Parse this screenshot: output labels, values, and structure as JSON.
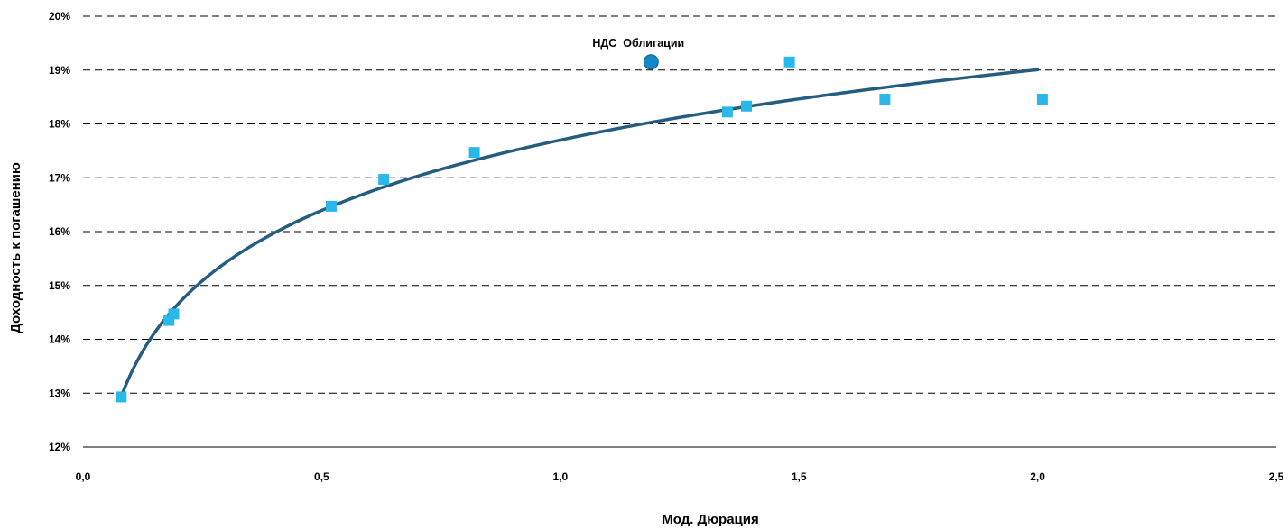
{
  "chart_data": {
    "type": "scatter",
    "xlabel": "Мод. Дюрация",
    "ylabel": "Доходность к погашению",
    "xlim": [
      0,
      2.5
    ],
    "ylim": [
      12,
      20
    ],
    "x_ticks": [
      "0,0",
      "0,5",
      "1,0",
      "1,5",
      "2,0",
      "2,5"
    ],
    "x_tick_values": [
      0,
      0.5,
      1.0,
      1.5,
      2.0,
      2.5
    ],
    "y_ticks": [
      "12%",
      "13%",
      "14%",
      "15%",
      "16%",
      "17%",
      "18%",
      "19%",
      "20%"
    ],
    "y_tick_values": [
      12,
      13,
      14,
      15,
      16,
      17,
      18,
      19,
      20
    ],
    "grid": "horizontal dashed",
    "series": [
      {
        "marker": "square",
        "color": "#29b8ea",
        "points": [
          {
            "x": 0.08,
            "y": 12.93
          },
          {
            "x": 0.18,
            "y": 14.35
          },
          {
            "x": 0.19,
            "y": 14.47
          },
          {
            "x": 0.52,
            "y": 16.47
          },
          {
            "x": 0.63,
            "y": 16.97
          },
          {
            "x": 0.82,
            "y": 17.47
          },
          {
            "x": 1.35,
            "y": 18.22
          },
          {
            "x": 1.39,
            "y": 18.33
          },
          {
            "x": 1.48,
            "y": 19.15
          },
          {
            "x": 1.68,
            "y": 18.46
          },
          {
            "x": 2.01,
            "y": 18.46
          }
        ]
      },
      {
        "name": "НДС Облигации",
        "marker": "circle",
        "color": "#1189c7",
        "points": [
          {
            "x": 1.19,
            "y": 19.15
          }
        ]
      }
    ],
    "trendline": {
      "type": "log",
      "color": "#245d7f",
      "x_range": [
        0.08,
        2.0
      ],
      "points": [
        {
          "x": 0.08,
          "y": 12.93
        },
        {
          "x": 0.19,
          "y": 14.55
        },
        {
          "x": 0.4,
          "y": 16.0
        },
        {
          "x": 0.52,
          "y": 16.47
        },
        {
          "x": 0.82,
          "y": 17.35
        },
        {
          "x": 1.0,
          "y": 17.7
        },
        {
          "x": 1.5,
          "y": 18.44
        },
        {
          "x": 2.0,
          "y": 19.0
        }
      ]
    },
    "annotations": [
      {
        "text": "НДС  Облигации",
        "x": 1.19,
        "y": 19.15
      }
    ]
  }
}
